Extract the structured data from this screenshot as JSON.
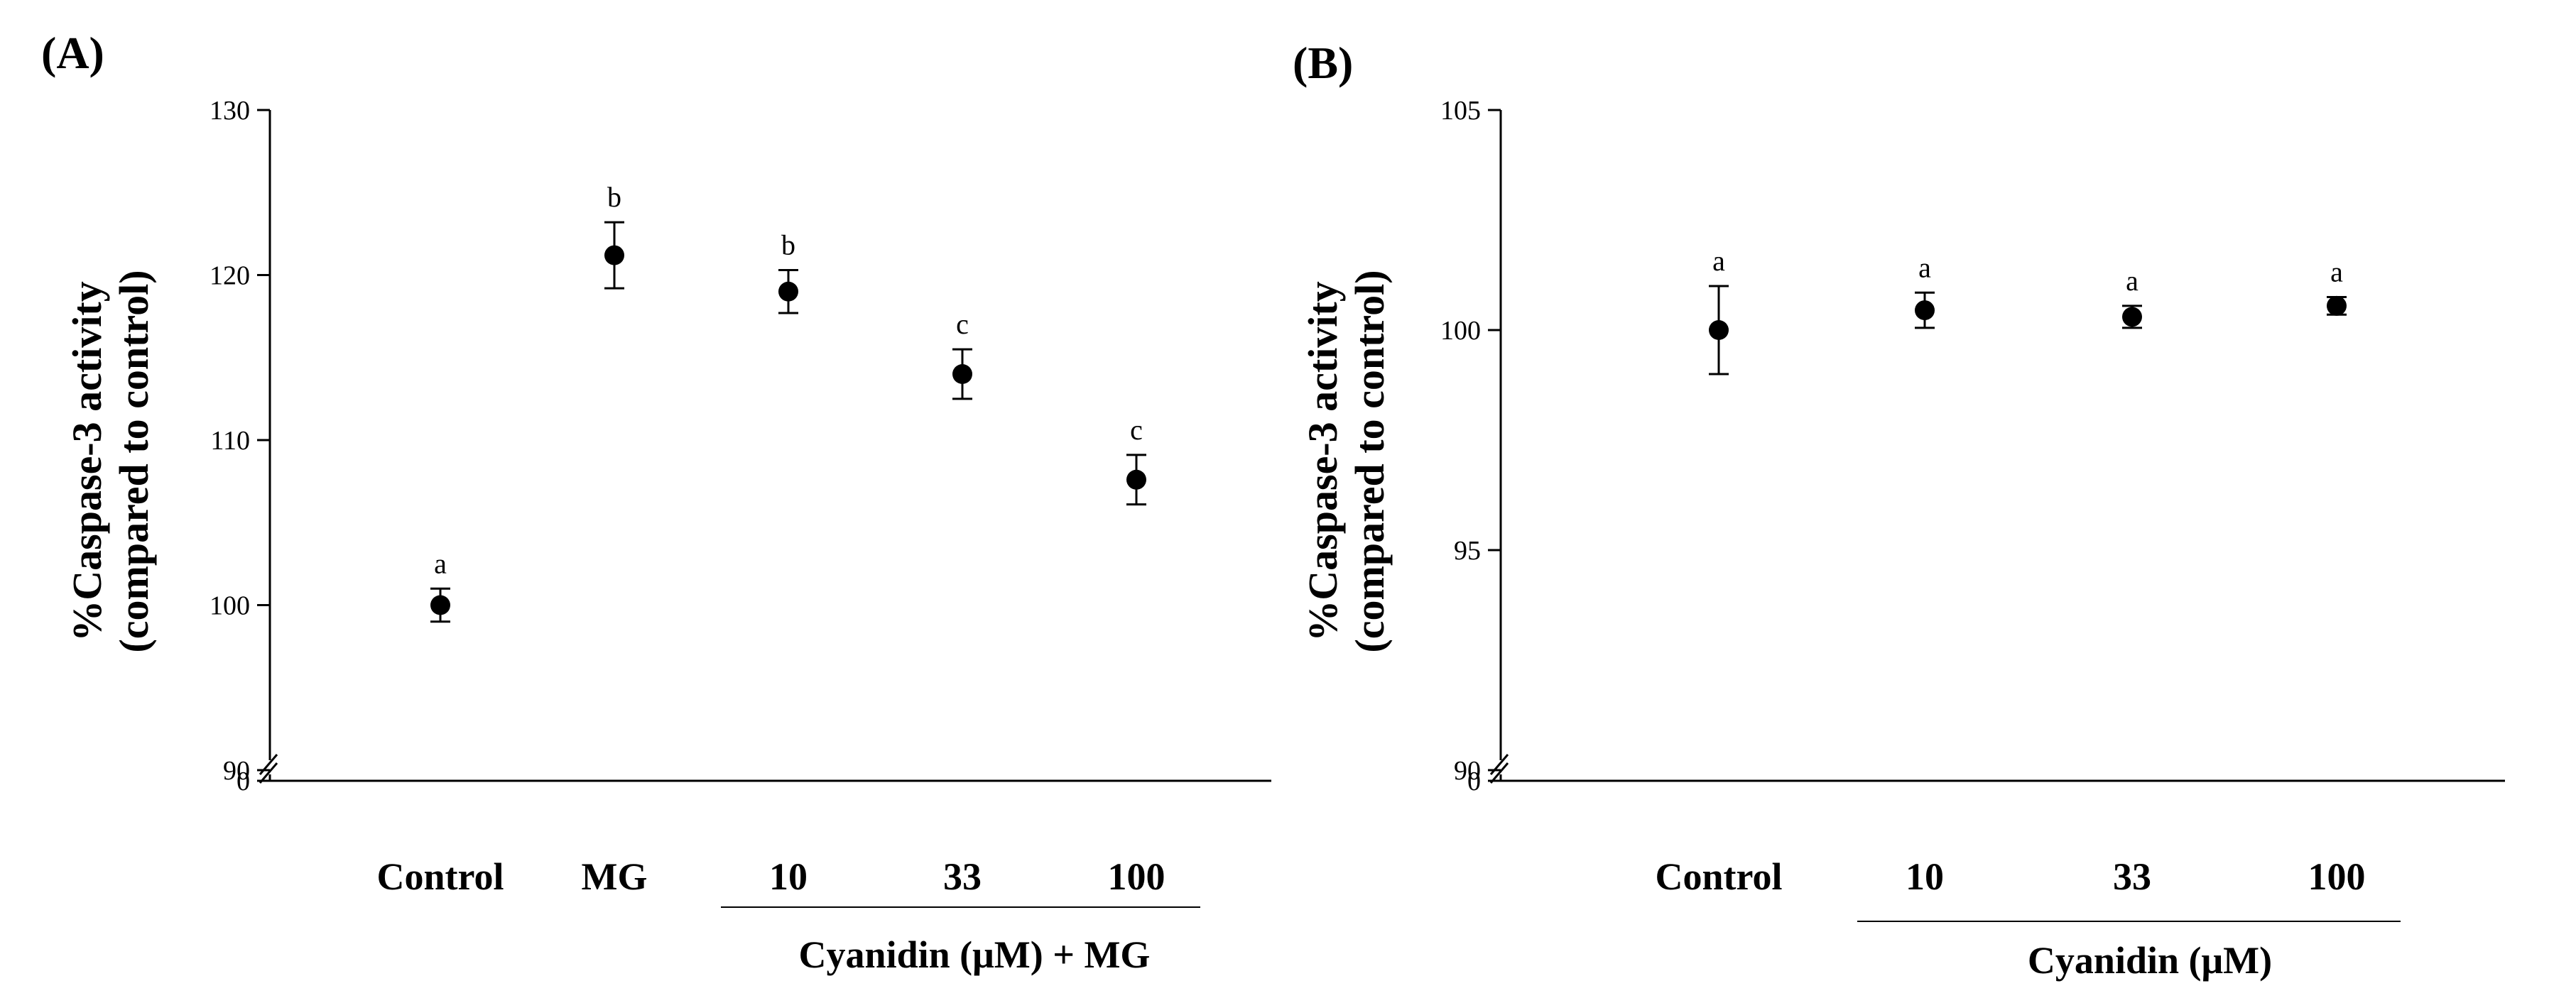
{
  "chart_data": [
    {
      "type": "scatter",
      "panel_label": "(A)",
      "ylabel_line1": "%Caspase-3 activity",
      "ylabel_line2": "(compared to control)",
      "categories": [
        "Control",
        "MG",
        "10",
        "33",
        "100"
      ],
      "values": [
        100,
        121.2,
        119.0,
        114.0,
        107.6
      ],
      "errors": [
        1.0,
        2.0,
        1.3,
        1.5,
        1.5
      ],
      "significance": [
        "a",
        "b",
        "b",
        "c",
        "c"
      ],
      "ylim": [
        90,
        130
      ],
      "yticks": [
        90,
        100,
        110,
        120,
        130
      ],
      "axis_break": true,
      "break_label": "0",
      "group_label": "Cyanidin (μM) + MG",
      "group_span": [
        "10",
        "100"
      ]
    },
    {
      "type": "scatter",
      "panel_label": "(B)",
      "ylabel_line1": "%Caspase-3 activity",
      "ylabel_line2": "(compared to control)",
      "categories": [
        "Control",
        "10",
        "33",
        "100"
      ],
      "values": [
        100,
        100.45,
        100.3,
        100.55
      ],
      "errors": [
        1.0,
        0.4,
        0.25,
        0.2
      ],
      "significance": [
        "a",
        "a",
        "a",
        "a"
      ],
      "ylim": [
        90,
        105
      ],
      "yticks": [
        90,
        95,
        100,
        105
      ],
      "axis_break": true,
      "break_label": "0",
      "group_label": "Cyanidin (μM)",
      "group_span": [
        "10",
        "100"
      ]
    }
  ]
}
